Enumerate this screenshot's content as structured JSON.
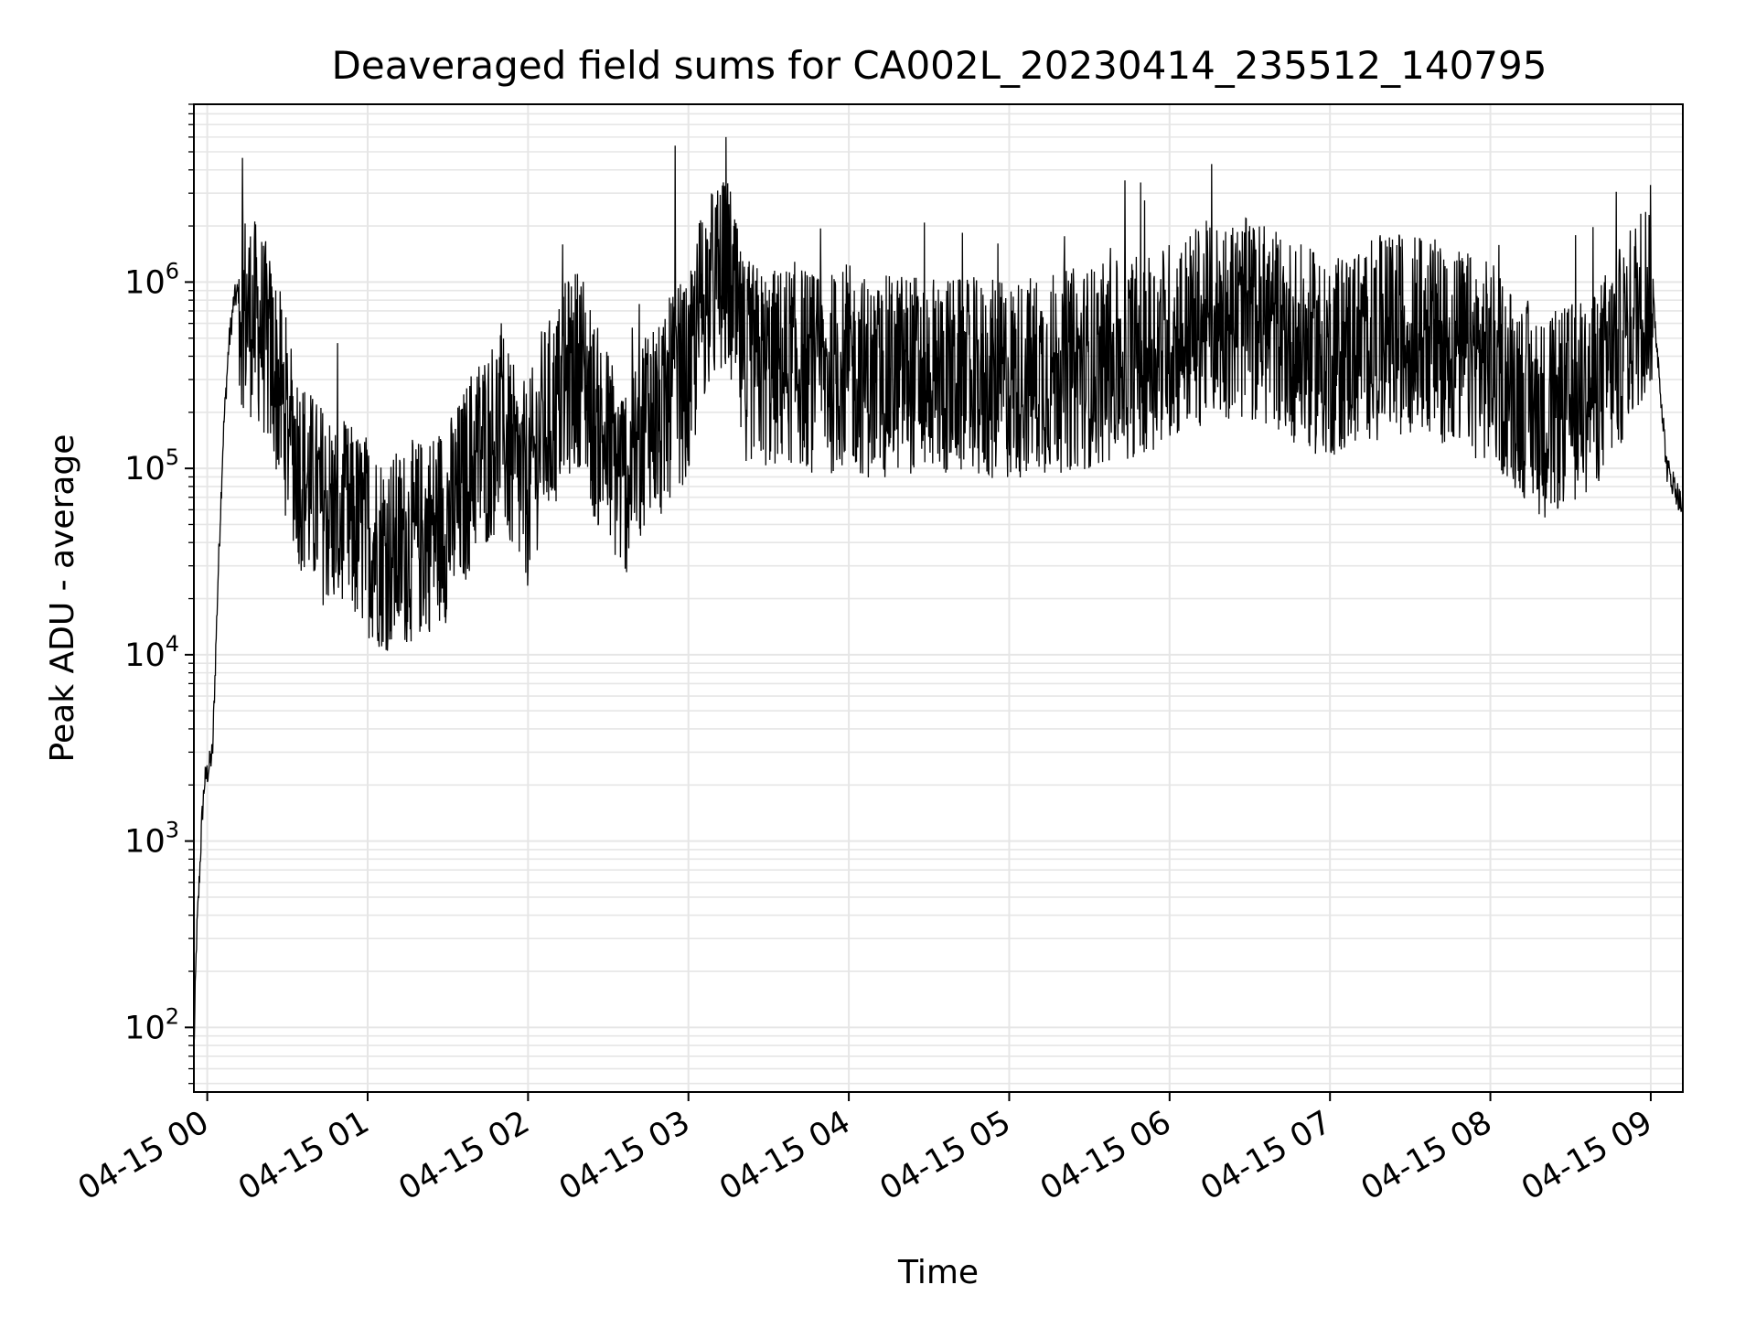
{
  "chart_data": {
    "type": "line",
    "title": "Deaveraged field sums for CA002L_20230414_235512_140795",
    "xlabel": "Time",
    "ylabel": "Peak ADU - average",
    "x_range": [
      "2023-04-14 23:55",
      "2023-04-15 09:12"
    ],
    "y_scale": "log",
    "y_range": [
      45,
      9000000
    ],
    "grid": true,
    "line_color": "#000000",
    "grid_color": "#e6e6e6",
    "x_ticks": [
      {
        "value": "2023-04-15 00:00",
        "label": "04-15 00"
      },
      {
        "value": "2023-04-15 01:00",
        "label": "04-15 01"
      },
      {
        "value": "2023-04-15 02:00",
        "label": "04-15 02"
      },
      {
        "value": "2023-04-15 03:00",
        "label": "04-15 03"
      },
      {
        "value": "2023-04-15 04:00",
        "label": "04-15 04"
      },
      {
        "value": "2023-04-15 05:00",
        "label": "04-15 05"
      },
      {
        "value": "2023-04-15 06:00",
        "label": "04-15 06"
      },
      {
        "value": "2023-04-15 07:00",
        "label": "04-15 07"
      },
      {
        "value": "2023-04-15 08:00",
        "label": "04-15 08"
      },
      {
        "value": "2023-04-15 09:00",
        "label": "04-15 09"
      }
    ],
    "y_ticks": [
      {
        "value": 100,
        "base": "10",
        "exp": "2"
      },
      {
        "value": 1000,
        "base": "10",
        "exp": "3"
      },
      {
        "value": 10000,
        "base": "10",
        "exp": "4"
      },
      {
        "value": 100000,
        "base": "10",
        "exp": "5"
      },
      {
        "value": 1000000,
        "base": "10",
        "exp": "6"
      }
    ],
    "series": [
      {
        "x": [
          "2023-04-14 23:55",
          "2023-04-14 23:56",
          "2023-04-14 23:57",
          "2023-04-14 23:58",
          "2023-04-14 23:59",
          "2023-04-15 00:00",
          "2023-04-15 00:02",
          "2023-04-15 00:04",
          "2023-04-15 00:06",
          "2023-04-15 00:08",
          "2023-04-15 00:10",
          "2023-04-15 00:12",
          "2023-04-15 00:15",
          "2023-04-15 00:20",
          "2023-04-15 00:25",
          "2023-04-15 00:30",
          "2023-04-15 00:35",
          "2023-04-15 00:40",
          "2023-04-15 00:45",
          "2023-04-15 00:50",
          "2023-04-15 00:55",
          "2023-04-15 01:00",
          "2023-04-15 01:05",
          "2023-04-15 01:10",
          "2023-04-15 01:15",
          "2023-04-15 01:20",
          "2023-04-15 01:25",
          "2023-04-15 01:30",
          "2023-04-15 01:35",
          "2023-04-15 01:40",
          "2023-04-15 01:45",
          "2023-04-15 01:50",
          "2023-04-15 01:55",
          "2023-04-15 02:00",
          "2023-04-15 02:05",
          "2023-04-15 02:10",
          "2023-04-15 02:15",
          "2023-04-15 02:20",
          "2023-04-15 02:25",
          "2023-04-15 02:30",
          "2023-04-15 02:35",
          "2023-04-15 02:40",
          "2023-04-15 02:45",
          "2023-04-15 02:50",
          "2023-04-15 02:55",
          "2023-04-15 03:00",
          "2023-04-15 03:05",
          "2023-04-15 03:10",
          "2023-04-15 03:15",
          "2023-04-15 03:20",
          "2023-04-15 03:30",
          "2023-04-15 03:40",
          "2023-04-15 03:50",
          "2023-04-15 04:00",
          "2023-04-15 04:10",
          "2023-04-15 04:20",
          "2023-04-15 04:30",
          "2023-04-15 04:40",
          "2023-04-15 04:50",
          "2023-04-15 05:00",
          "2023-04-15 05:10",
          "2023-04-15 05:20",
          "2023-04-15 05:30",
          "2023-04-15 05:40",
          "2023-04-15 05:50",
          "2023-04-15 06:00",
          "2023-04-15 06:10",
          "2023-04-15 06:20",
          "2023-04-15 06:30",
          "2023-04-15 06:40",
          "2023-04-15 06:50",
          "2023-04-15 07:00",
          "2023-04-15 07:10",
          "2023-04-15 07:20",
          "2023-04-15 07:30",
          "2023-04-15 07:40",
          "2023-04-15 07:50",
          "2023-04-15 08:00",
          "2023-04-15 08:10",
          "2023-04-15 08:20",
          "2023-04-15 08:30",
          "2023-04-15 08:40",
          "2023-04-15 08:50",
          "2023-04-15 08:55",
          "2023-04-15 09:00",
          "2023-04-15 09:03",
          "2023-04-15 09:06",
          "2023-04-15 09:09",
          "2023-04-15 09:12"
        ],
        "y": [
          75,
          300,
          600,
          1300,
          2100,
          2300,
          3000,
          25000,
          150000,
          450000,
          800000,
          900000,
          780000,
          650000,
          400000,
          200000,
          110000,
          80000,
          70000,
          60000,
          55000,
          50000,
          42000,
          40000,
          45000,
          48000,
          55000,
          60000,
          80000,
          130000,
          150000,
          200000,
          110000,
          90000,
          180000,
          230000,
          350000,
          420000,
          200000,
          150000,
          100000,
          120000,
          250000,
          180000,
          350000,
          300000,
          900000,
          1100000,
          1200000,
          450000,
          380000,
          420000,
          350000,
          400000,
          330000,
          380000,
          360000,
          350000,
          330000,
          340000,
          360000,
          380000,
          400000,
          420000,
          480000,
          550000,
          650000,
          750000,
          700000,
          650000,
          500000,
          450000,
          520000,
          580000,
          620000,
          560000,
          480000,
          420000,
          300000,
          210000,
          250000,
          320000,
          550000,
          800000,
          1100000,
          350000,
          100000,
          80000,
          60000
        ],
        "noise": true
      }
    ]
  }
}
